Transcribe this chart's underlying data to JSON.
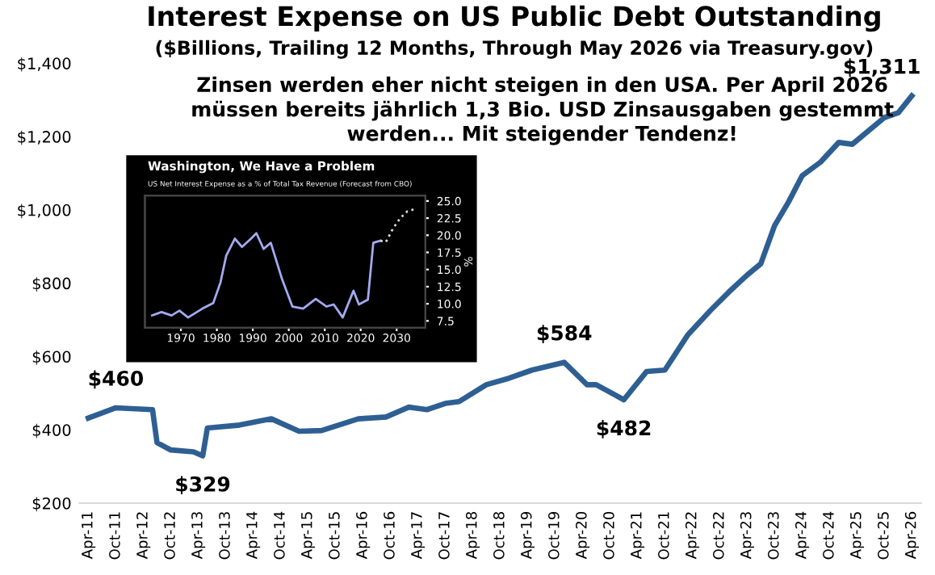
{
  "chart_data": [
    {
      "type": "line",
      "title": "Interest Expense on US Public Debt Outstanding",
      "subtitle": "($Billions, Trailing 12 Months, Through May 2026 via Treasury.gov)",
      "x": [
        "2011-04",
        "2011-10",
        "2012-06",
        "2012-07",
        "2012-10",
        "2013-03",
        "2013-05",
        "2013-06",
        "2014-01",
        "2014-08",
        "2015-02",
        "2015-07",
        "2016-03",
        "2016-09",
        "2017-02",
        "2017-06",
        "2017-10",
        "2018-01",
        "2018-07",
        "2018-12",
        "2019-05",
        "2019-12",
        "2020-05",
        "2020-07",
        "2021-01",
        "2021-06",
        "2021-10",
        "2022-03",
        "2022-08",
        "2022-12",
        "2023-04",
        "2023-07",
        "2023-10",
        "2024-01",
        "2024-04",
        "2024-08",
        "2024-12",
        "2025-03",
        "2025-10",
        "2026-01",
        "2026-04"
      ],
      "series": [
        {
          "color": "#2e5f93",
          "values": [
            432,
            460,
            455,
            365,
            345,
            340,
            329,
            405,
            413,
            430,
            396,
            398,
            430,
            435,
            462,
            455,
            472,
            477,
            523,
            541,
            563,
            584,
            523,
            523,
            482,
            559,
            563,
            658,
            726,
            776,
            822,
            853,
            957,
            1021,
            1093,
            1130,
            1184,
            1179,
            1252,
            1265,
            1311
          ]
        }
      ],
      "xlim": [
        "2011-02",
        "2026-06"
      ],
      "xticks": [
        {
          "value": "2011-04",
          "label": "Apr-11"
        },
        {
          "value": "2011-10",
          "label": "Oct-11"
        },
        {
          "value": "2012-04",
          "label": "Apr-12"
        },
        {
          "value": "2012-10",
          "label": "Oct-12"
        },
        {
          "value": "2013-04",
          "label": "Apr-13"
        },
        {
          "value": "2013-10",
          "label": "Oct-13"
        },
        {
          "value": "2014-04",
          "label": "Apr-14"
        },
        {
          "value": "2014-10",
          "label": "Oct-14"
        },
        {
          "value": "2015-04",
          "label": "Apr-15"
        },
        {
          "value": "2015-10",
          "label": "Oct-15"
        },
        {
          "value": "2016-04",
          "label": "Apr-16"
        },
        {
          "value": "2016-10",
          "label": "Oct-16"
        },
        {
          "value": "2017-04",
          "label": "Apr-17"
        },
        {
          "value": "2017-10",
          "label": "Oct-17"
        },
        {
          "value": "2018-04",
          "label": "Apr-18"
        },
        {
          "value": "2018-10",
          "label": "Oct-18"
        },
        {
          "value": "2019-04",
          "label": "Apr-19"
        },
        {
          "value": "2019-10",
          "label": "Oct-19"
        },
        {
          "value": "2020-04",
          "label": "Apr-20"
        },
        {
          "value": "2020-10",
          "label": "Oct-20"
        },
        {
          "value": "2021-04",
          "label": "Apr-21"
        },
        {
          "value": "2021-10",
          "label": "Oct-21"
        },
        {
          "value": "2022-04",
          "label": "Apr-22"
        },
        {
          "value": "2022-10",
          "label": "Oct-22"
        },
        {
          "value": "2023-04",
          "label": "Apr-23"
        },
        {
          "value": "2023-10",
          "label": "Oct-23"
        },
        {
          "value": "2024-04",
          "label": "Apr-24"
        },
        {
          "value": "2024-10",
          "label": "Oct-24"
        },
        {
          "value": "2025-04",
          "label": "Apr-25"
        },
        {
          "value": "2025-10",
          "label": "Oct-25"
        },
        {
          "value": "2026-04",
          "label": "Apr-26"
        }
      ],
      "ylim": [
        200,
        1400
      ],
      "yticks": [
        {
          "value": 200,
          "label": "$200"
        },
        {
          "value": 400,
          "label": "$400"
        },
        {
          "value": 600,
          "label": "$600"
        },
        {
          "value": 800,
          "label": "$800"
        },
        {
          "value": 1000,
          "label": "$1,000"
        },
        {
          "value": 1200,
          "label": "$1,200"
        },
        {
          "value": 1400,
          "label": "$1,400"
        }
      ],
      "annotations": [
        "Zinsen werden eher nicht steigen in den USA. Per April 2026\nmüssen bereits jährlich 1,3 Bio. USD Zinsausgaben gestemmt\nwerden... Mit steigender Tendenz!",
        {
          "text": "$460",
          "x": "2011-10",
          "y": 460
        },
        {
          "text": "$329",
          "x": "2013-05",
          "y": 329
        },
        {
          "text": "$584",
          "x": "2019-12",
          "y": 584
        },
        {
          "text": "$482",
          "x": "2021-01",
          "y": 482
        },
        {
          "text": "$1,311",
          "x": "2026-04",
          "y": 1311
        }
      ],
      "grid": false,
      "legend": false,
      "marker": "none",
      "line_style": "solid"
    },
    {
      "type": "line",
      "title": "Washington, We Have a Problem",
      "subtitle": "US Net Interest Expense as a % of Total Tax Revenue (Forecast from CBO)",
      "y2label": "%",
      "series": [
        {
          "color": "#a3aaf0",
          "axis": "y2",
          "line_style": "solid",
          "x": [
            1962,
            1964.6,
            1967.4,
            1969.6,
            1972,
            1976,
            1979,
            1981,
            1982.6,
            1985,
            1987,
            1989.5,
            1991,
            1993,
            1995,
            1998,
            2001,
            2004,
            2007.5,
            2010.5,
            2012.5,
            2015,
            2018,
            2019.5,
            2022,
            2023.5,
            2025.5
          ],
          "values": [
            8.3,
            8.8,
            8.3,
            9.0,
            8.0,
            9.3,
            10.1,
            13.1,
            17.0,
            19.5,
            18.3,
            19.5,
            20.3,
            18.0,
            18.9,
            13.8,
            9.6,
            9.3,
            10.7,
            9.6,
            9.9,
            8.0,
            11.9,
            9.9,
            10.6,
            18.9,
            19.2
          ]
        },
        {
          "color": "#d8d8d8",
          "axis": "y2",
          "line_style": "dotted",
          "x": [
            2025.5,
            2027,
            2029,
            2031,
            2033,
            2035
          ],
          "values": [
            19.2,
            19.0,
            21.0,
            22.5,
            23.5,
            23.8
          ]
        }
      ],
      "xlim": [
        1960,
        2038
      ],
      "xticks": [
        1970,
        1980,
        1990,
        2000,
        2010,
        2020,
        2030
      ],
      "y2lim": [
        6.5,
        25.8
      ],
      "y2ticks": [
        {
          "value": 7.5,
          "label": "7.5"
        },
        {
          "value": 10,
          "label": "10.0"
        },
        {
          "value": 12.5,
          "label": "12.5"
        },
        {
          "value": 15,
          "label": "15.0"
        },
        {
          "value": 17.5,
          "label": "17.5"
        },
        {
          "value": 20,
          "label": "20.0"
        },
        {
          "value": 22.5,
          "label": "22.5"
        },
        {
          "value": 25,
          "label": "25.0"
        }
      ],
      "grid": false,
      "legend": false,
      "marker": "none"
    }
  ]
}
